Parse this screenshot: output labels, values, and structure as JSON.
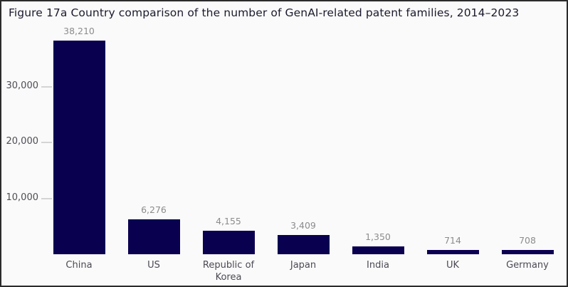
{
  "title": "Figure 17a Country comparison of the number of GenAI-related patent families, 2014–2023",
  "chart_data": {
    "type": "bar",
    "title": "Figure 17a Country comparison of the number of GenAI-related patent families, 2014–2023",
    "categories": [
      "China",
      "US",
      "Republic of Korea",
      "Japan",
      "India",
      "UK",
      "Germany"
    ],
    "values": [
      38210,
      6276,
      4155,
      3409,
      1350,
      714,
      708
    ],
    "value_labels": [
      "38,210",
      "6,276",
      "4,155",
      "3,409",
      "1,350",
      "714",
      "708"
    ],
    "xlabel": "",
    "ylabel": "",
    "y_ticks": [
      10000,
      20000,
      30000
    ],
    "y_tick_labels": [
      "10,000",
      "20,000",
      "30,000"
    ],
    "ylim": [
      0,
      38500
    ],
    "grid": false,
    "legend": false,
    "bar_color": "#0a0050"
  },
  "colors": {
    "background": "#fafafa",
    "border": "#2b2b2b",
    "title_text": "#1a1a2e",
    "bar": "#0a0050",
    "value_label": "#8c8c8c",
    "axis_label": "#4a4a55",
    "tick_mark": "#d4d4d4"
  }
}
